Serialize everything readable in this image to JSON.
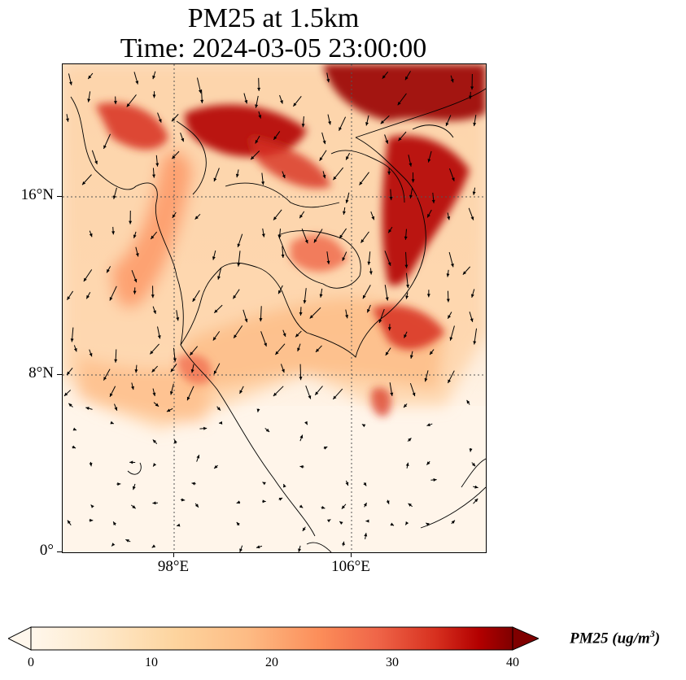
{
  "title": {
    "line1": "PM25 at 1.5km",
    "line2": "Time: 2024-03-05 23:00:00"
  },
  "map": {
    "latitude_ticks": [
      "16°N",
      "8°N",
      "0°"
    ],
    "longitude_ticks": [
      "98°E",
      "106°E"
    ],
    "gridlines": "dotted"
  },
  "colorbar": {
    "label_prefix": "PM25 (ug/m",
    "label_exponent": "3",
    "label_suffix": ")",
    "ticks": [
      "0",
      "10",
      "20",
      "30",
      "40"
    ],
    "colormap": "OrRd",
    "extend": "both",
    "colors": {
      "min": "#fff7ec",
      "low": "#fdd49e",
      "mid": "#fc8d59",
      "high": "#d7301f",
      "max": "#7f0000"
    }
  }
}
